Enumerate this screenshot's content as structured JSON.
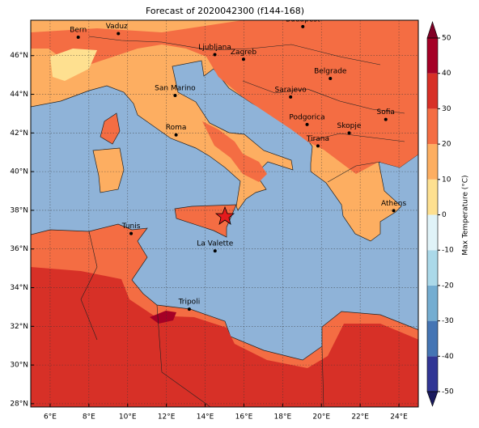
{
  "title": "Forecast of 2020042300 (f144-168)",
  "map": {
    "xlim": [
      5,
      25
    ],
    "ylim": [
      27.83,
      47.83
    ],
    "xticks": [
      {
        "value": 6,
        "label": "6°E"
      },
      {
        "value": 8,
        "label": "8°E"
      },
      {
        "value": 10,
        "label": "10°E"
      },
      {
        "value": 12,
        "label": "12°E"
      },
      {
        "value": 14,
        "label": "14°E"
      },
      {
        "value": 16,
        "label": "16°E"
      },
      {
        "value": 18,
        "label": "18°E"
      },
      {
        "value": 20,
        "label": "20°E"
      },
      {
        "value": 22,
        "label": "22°E"
      },
      {
        "value": 24,
        "label": "24°E"
      }
    ],
    "yticks": [
      {
        "value": 28,
        "label": "28°N"
      },
      {
        "value": 30,
        "label": "30°N"
      },
      {
        "value": 32,
        "label": "32°N"
      },
      {
        "value": 34,
        "label": "34°N"
      },
      {
        "value": 36,
        "label": "36°N"
      },
      {
        "value": 38,
        "label": "38°N"
      },
      {
        "value": 40,
        "label": "40°N"
      },
      {
        "value": 42,
        "label": "42°N"
      },
      {
        "value": 44,
        "label": "44°N"
      },
      {
        "value": 46,
        "label": "46°N"
      }
    ],
    "grid": true,
    "cities": [
      "Bern",
      "Vaduz",
      "Budapest",
      "Ljubljana",
      "Zagreb",
      "Belgrade",
      "San Marino",
      "Sarajevo",
      "Sofia",
      "Podgorica",
      "Skopje",
      "Roma",
      "Tirana",
      "Athens",
      "Tunis",
      "La Valette",
      "Tripoli"
    ]
  },
  "colorbar": {
    "label": "Max Temperature (°C)",
    "ticks": [
      -50,
      -40,
      -30,
      -20,
      -10,
      0,
      10,
      20,
      30,
      40,
      50
    ],
    "colors": [
      "#313695",
      "#4575b4",
      "#74add1",
      "#abd9e9",
      "#e0f3f8",
      "#fee090",
      "#fdae61",
      "#f46d43",
      "#d73027",
      "#a50026"
    ]
  }
}
